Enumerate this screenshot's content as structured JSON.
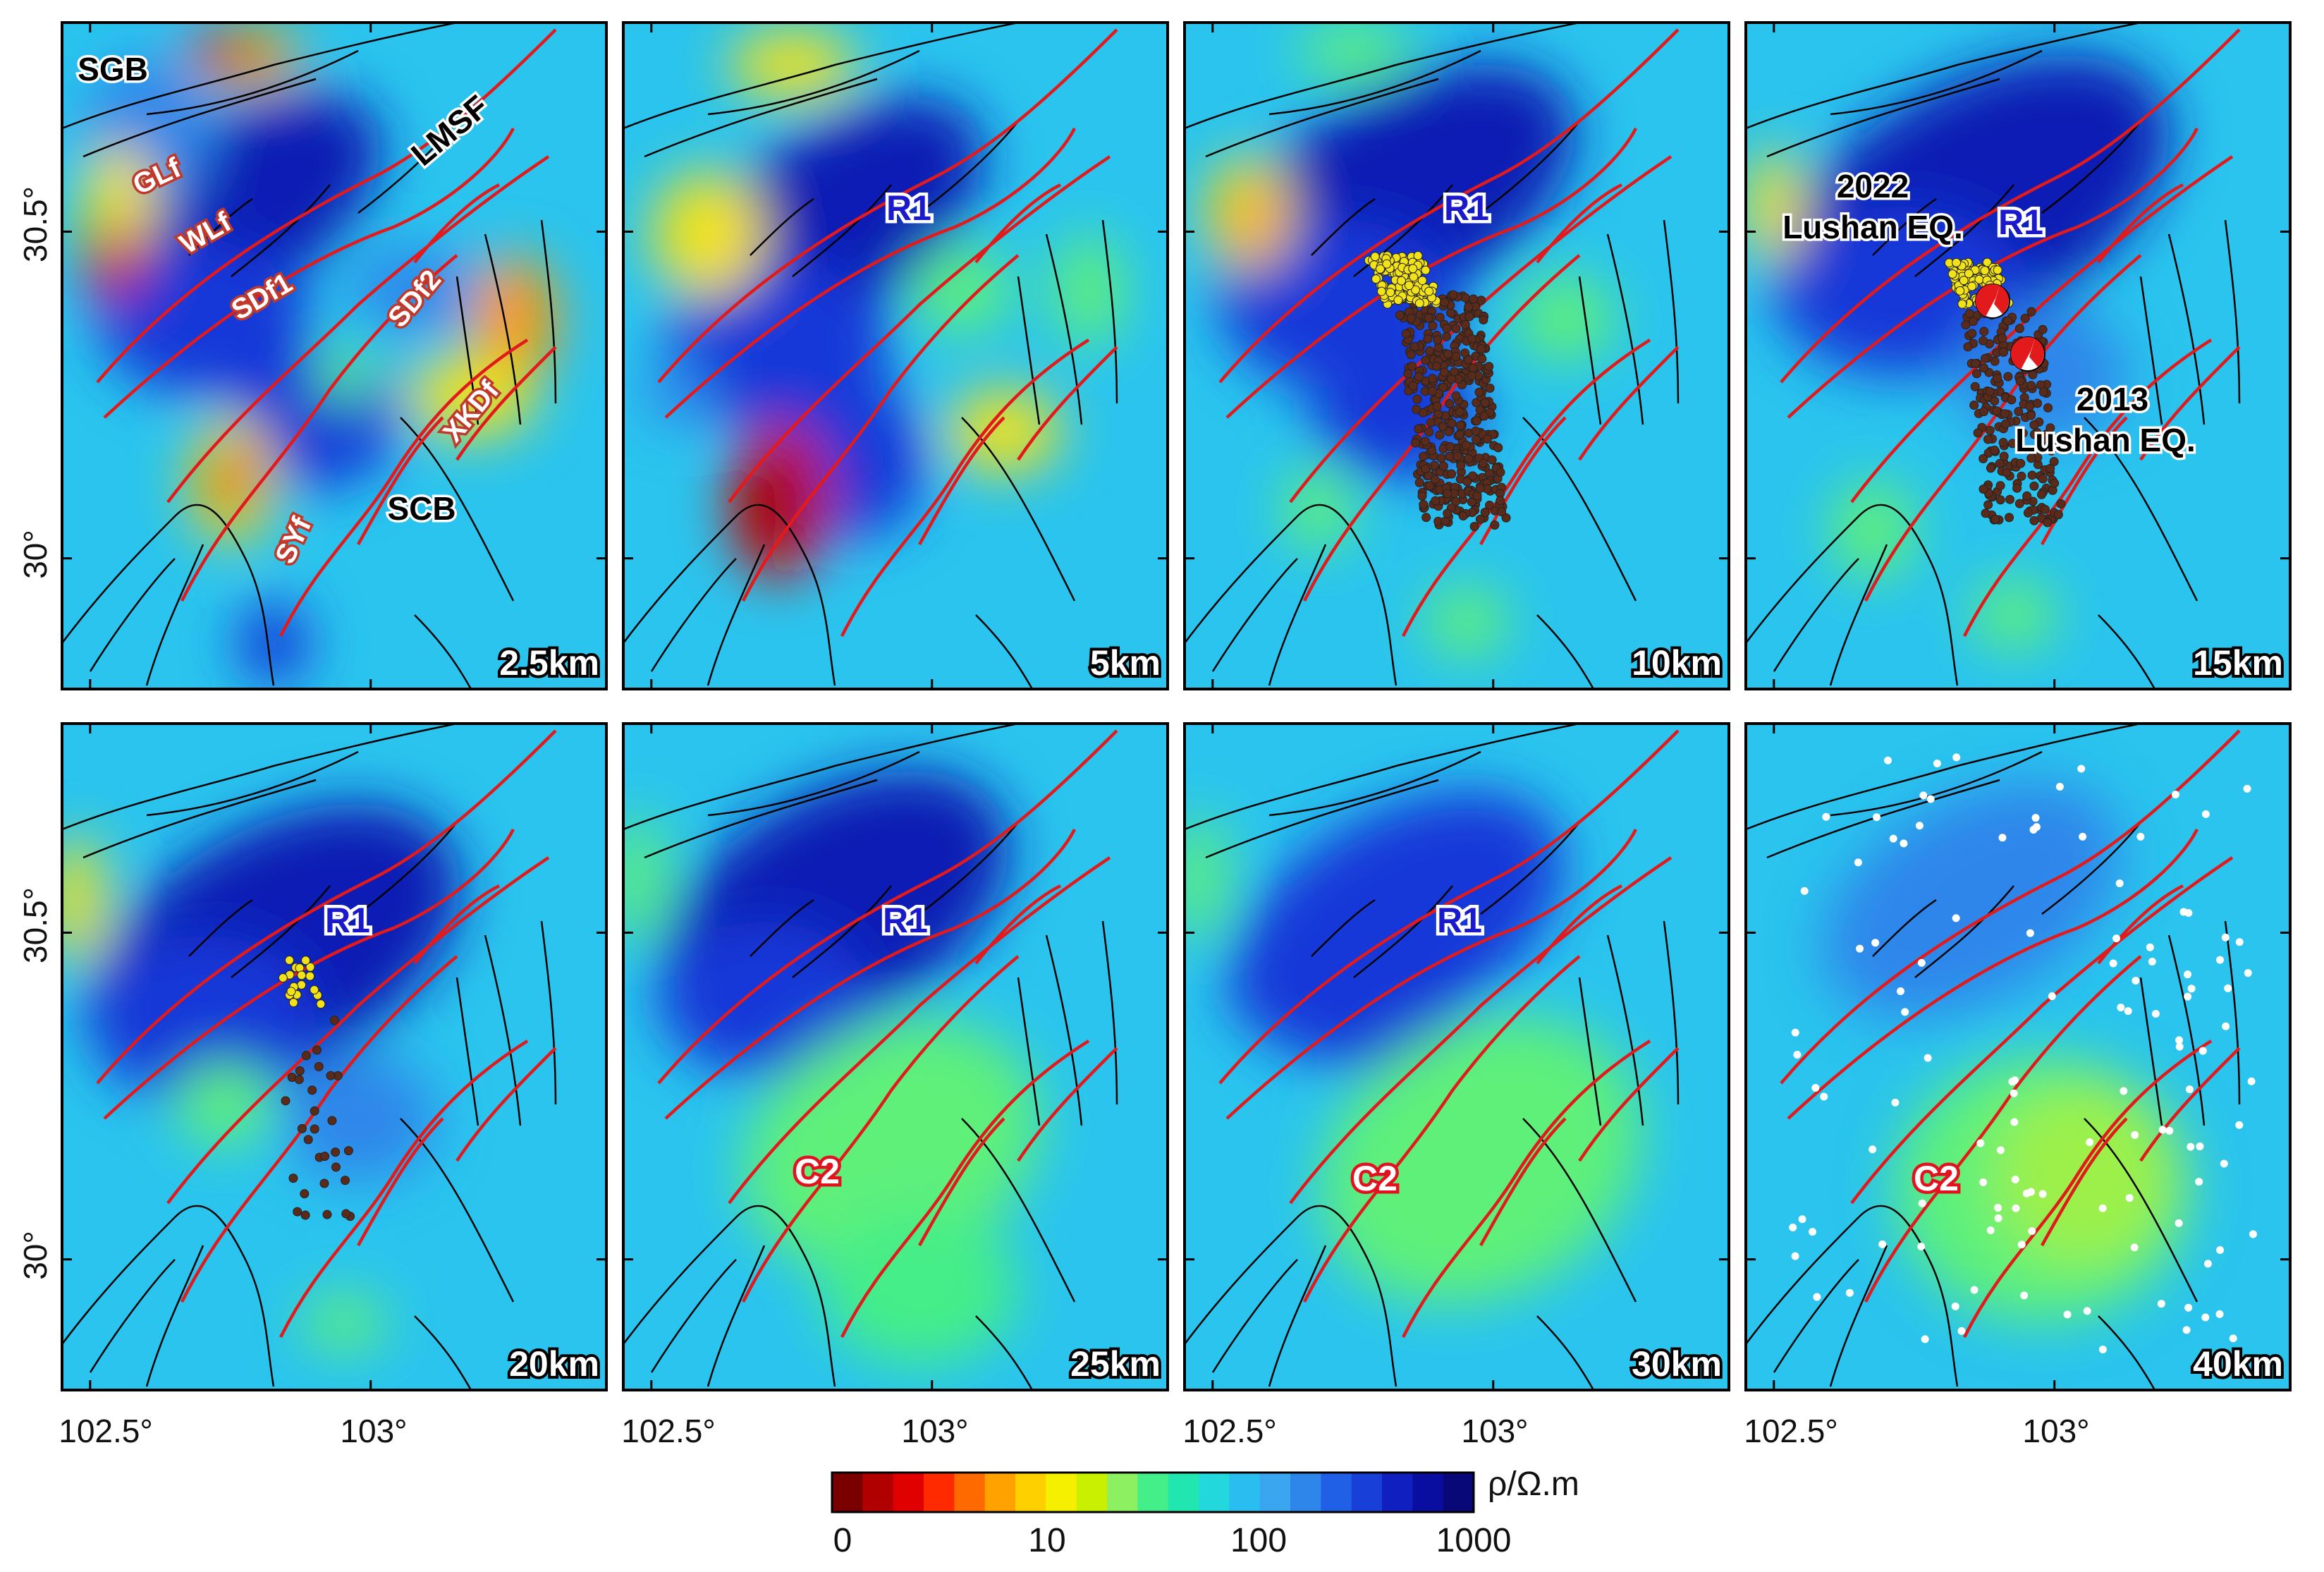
{
  "panels": [
    {
      "id": "p1",
      "depth": "2.5km"
    },
    {
      "id": "p2",
      "depth": "5km"
    },
    {
      "id": "p3",
      "depth": "10km"
    },
    {
      "id": "p4",
      "depth": "15km"
    },
    {
      "id": "p5",
      "depth": "20km"
    },
    {
      "id": "p6",
      "depth": "25km"
    },
    {
      "id": "p7",
      "depth": "30km"
    },
    {
      "id": "p8",
      "depth": "40km"
    }
  ],
  "axes": {
    "lat_ticks": [
      "30.5°",
      "30°"
    ],
    "lon_ticks": [
      "102.5°",
      "103°"
    ]
  },
  "fault_labels": {
    "sgb": "SGB",
    "glf": "GLf",
    "wlf": "WLf",
    "sdf1": "SDf1",
    "sdf2": "SDf2",
    "lmsf": "LMSF",
    "xkdf": "XKDf",
    "syf": "SYf",
    "scb": "SCB"
  },
  "anomalies": {
    "r1": "R1",
    "c2": "C2"
  },
  "earthquakes": {
    "eq2022_year": "2022",
    "eq2022_name": "Lushan EQ.",
    "eq2013_year": "2013",
    "eq2013_name": "Lushan EQ."
  },
  "colorbar": {
    "unit": "ρ/Ω.m",
    "ticks": [
      "0",
      "10",
      "100",
      "1000"
    ],
    "colors": [
      "#7a0000",
      "#b00000",
      "#e00000",
      "#ff2a00",
      "#ff6a00",
      "#ffa200",
      "#ffd000",
      "#f5f000",
      "#c8f000",
      "#8cf060",
      "#44ee88",
      "#22e6b0",
      "#22d8dc",
      "#2abef0",
      "#3aa6f0",
      "#2f86ea",
      "#2060e6",
      "#1840d8",
      "#1020c0",
      "#0a0ea0",
      "#080878"
    ]
  }
}
